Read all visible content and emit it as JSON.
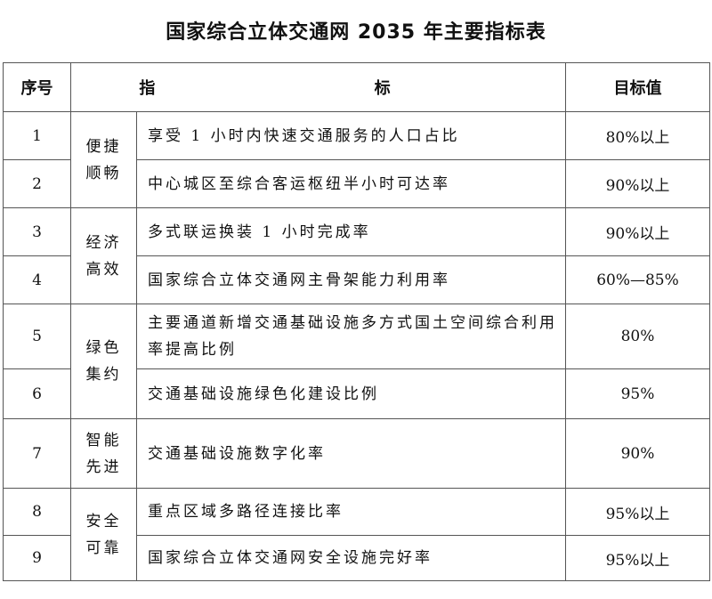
{
  "title": "国家综合立体交通网 2035 年主要指标表",
  "table": {
    "headers": {
      "no": "序号",
      "indicator": "指 标",
      "target": "目标值"
    },
    "groups": [
      {
        "category": "便捷顺畅",
        "rows": [
          {
            "no": "1",
            "indicator": "享受 1 小时内快速交通服务的人口占比",
            "target": "80%以上"
          },
          {
            "no": "2",
            "indicator": "中心城区至综合客运枢纽半小时可达率",
            "target": "90%以上"
          }
        ]
      },
      {
        "category": "经济高效",
        "rows": [
          {
            "no": "3",
            "indicator": "多式联运换装 1 小时完成率",
            "target": "90%以上"
          },
          {
            "no": "4",
            "indicator": "国家综合立体交通网主骨架能力利用率",
            "target": "60%—85%"
          }
        ]
      },
      {
        "category": "绿色集约",
        "rows": [
          {
            "no": "5",
            "indicator": "主要通道新增交通基础设施多方式国土空间综合利用率提高比例",
            "target": "80%"
          },
          {
            "no": "6",
            "indicator": "交通基础设施绿色化建设比例",
            "target": "95%"
          }
        ]
      },
      {
        "category": "智能先进",
        "rows": [
          {
            "no": "7",
            "indicator": "交通基础设施数字化率",
            "target": "90%"
          }
        ]
      },
      {
        "category": "安全可靠",
        "rows": [
          {
            "no": "8",
            "indicator": "重点区域多路径连接比率",
            "target": "95%以上"
          },
          {
            "no": "9",
            "indicator": "国家综合立体交通网安全设施完好率",
            "target": "95%以上"
          }
        ]
      }
    ]
  }
}
